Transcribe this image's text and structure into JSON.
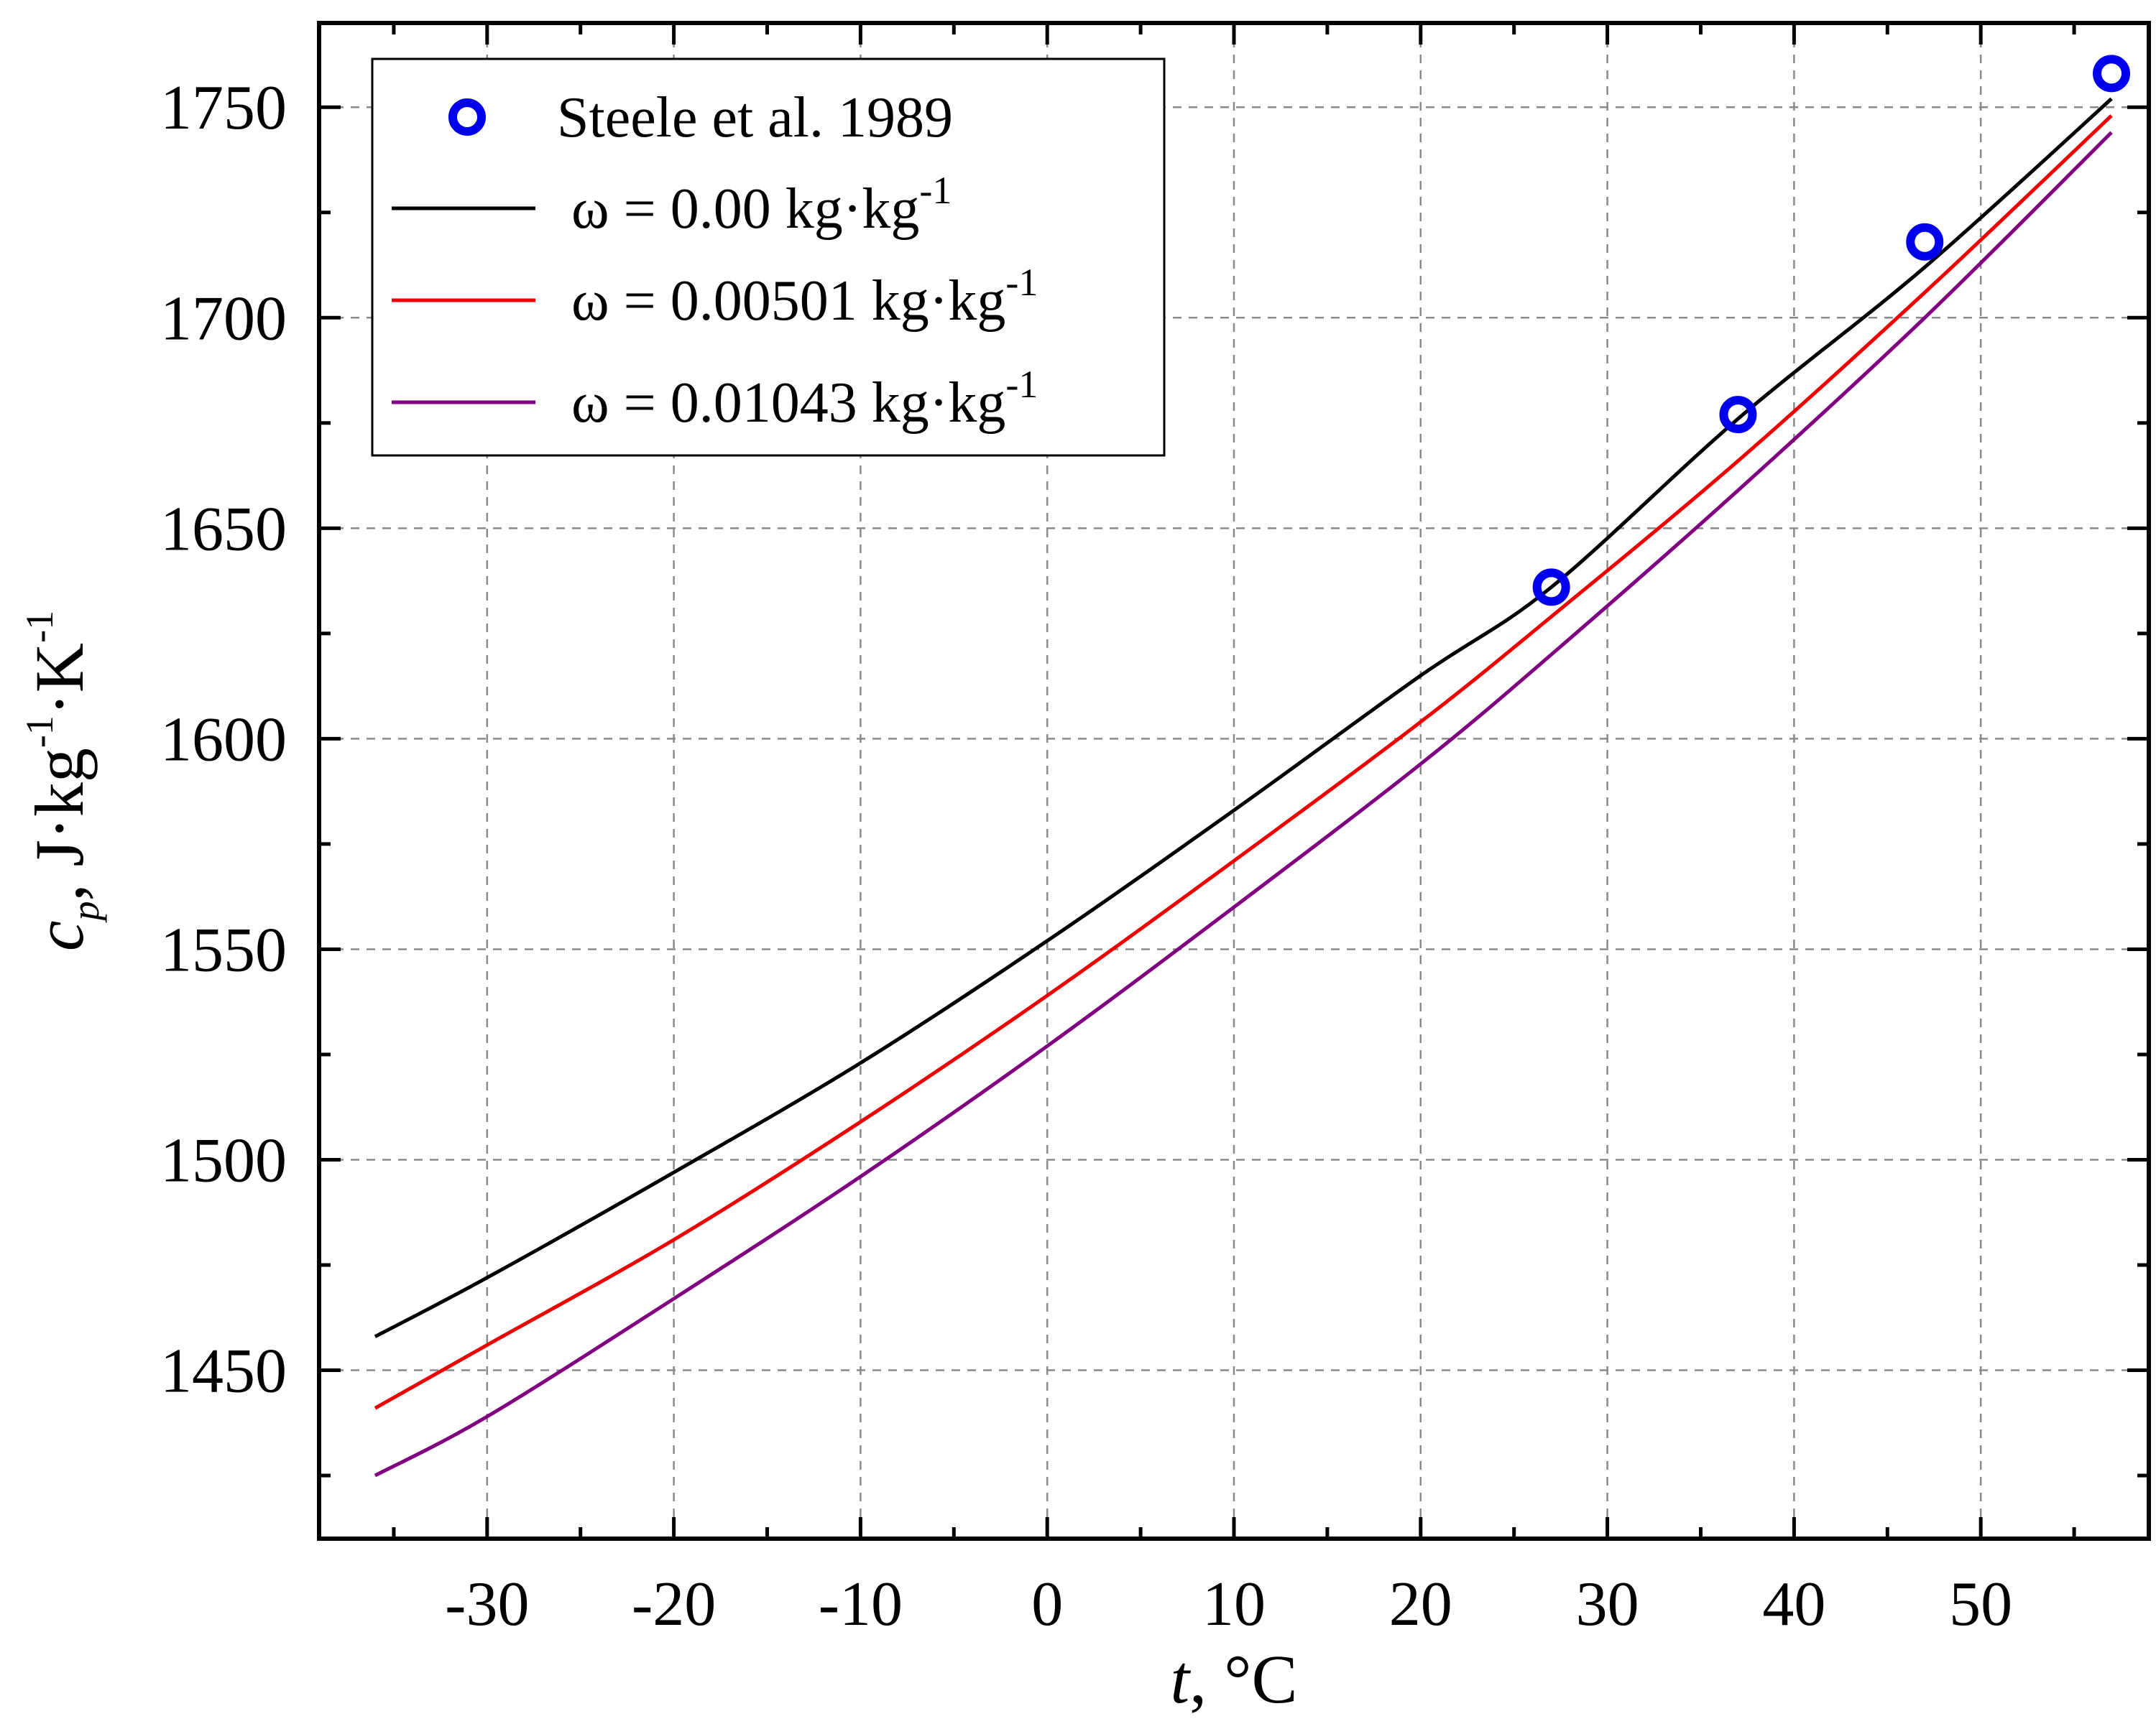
{
  "chart_data": {
    "type": "line",
    "title": "",
    "xlabel": {
      "var": "t",
      "unit": ", °C"
    },
    "ylabel": {
      "var": "c",
      "sub": "p",
      "unit_parts": [
        ", J·kg",
        "-1",
        "·K",
        "-1"
      ]
    },
    "xlim": [
      -39,
      59
    ],
    "ylim": [
      1410,
      1770
    ],
    "x_ticks": [
      -30,
      -20,
      -10,
      0,
      10,
      20,
      30,
      40,
      50
    ],
    "x_tick_labels": [
      "-30",
      "-20",
      "-10",
      "0",
      "10",
      "20",
      "30",
      "40",
      "50"
    ],
    "x_minor_ticks": [
      -35,
      -25,
      -15,
      -5,
      5,
      15,
      25,
      35,
      45,
      55
    ],
    "y_ticks": [
      1450,
      1500,
      1550,
      1600,
      1650,
      1700,
      1750
    ],
    "y_tick_labels": [
      "1450",
      "1500",
      "1550",
      "1600",
      "1650",
      "1700",
      "1750"
    ],
    "y_minor_ticks": [
      1425,
      1475,
      1525,
      1575,
      1625,
      1675,
      1725
    ],
    "grid": true,
    "legend_position": "top-left",
    "series": [
      {
        "name": "Steele et al. 1989",
        "kind": "scatter",
        "marker": "open-circle",
        "color": "#0000ee",
        "x": [
          27,
          37,
          47,
          57
        ],
        "y": [
          1636,
          1677,
          1718,
          1758
        ]
      },
      {
        "name": "ω = 0.00 kg·kg-1",
        "label_main": "ω = 0.00 kg·kg",
        "label_sup": "-1",
        "kind": "line",
        "color": "#000000",
        "x": [
          -36,
          -30,
          -20,
          -10,
          0,
          10,
          20,
          27,
          37,
          47,
          57
        ],
        "y": [
          1458,
          1472,
          1497,
          1523,
          1552,
          1583,
          1615,
          1636,
          1676,
          1712,
          1752
        ]
      },
      {
        "name": "ω = 0.00501 kg·kg-1",
        "label_main": "ω = 0.00501 kg·kg",
        "label_sup": "-1",
        "kind": "line",
        "color": "#ee0000",
        "x": [
          -36,
          -30,
          -20,
          -10,
          0,
          10,
          20,
          27,
          37,
          47,
          57
        ],
        "y": [
          1441,
          1456,
          1481,
          1509,
          1539,
          1571,
          1604,
          1629,
          1666,
          1706,
          1748
        ]
      },
      {
        "name": "ω = 0.01043 kg·kg-1",
        "label_main": "ω = 0.01043 kg·kg",
        "label_sup": "-1",
        "kind": "line",
        "color": "#800080",
        "x": [
          -36,
          -30,
          -20,
          -10,
          0,
          10,
          20,
          27,
          37,
          47,
          57
        ],
        "y": [
          1425,
          1439,
          1467,
          1496,
          1527,
          1560,
          1594,
          1620,
          1659,
          1700,
          1744
        ]
      }
    ]
  }
}
